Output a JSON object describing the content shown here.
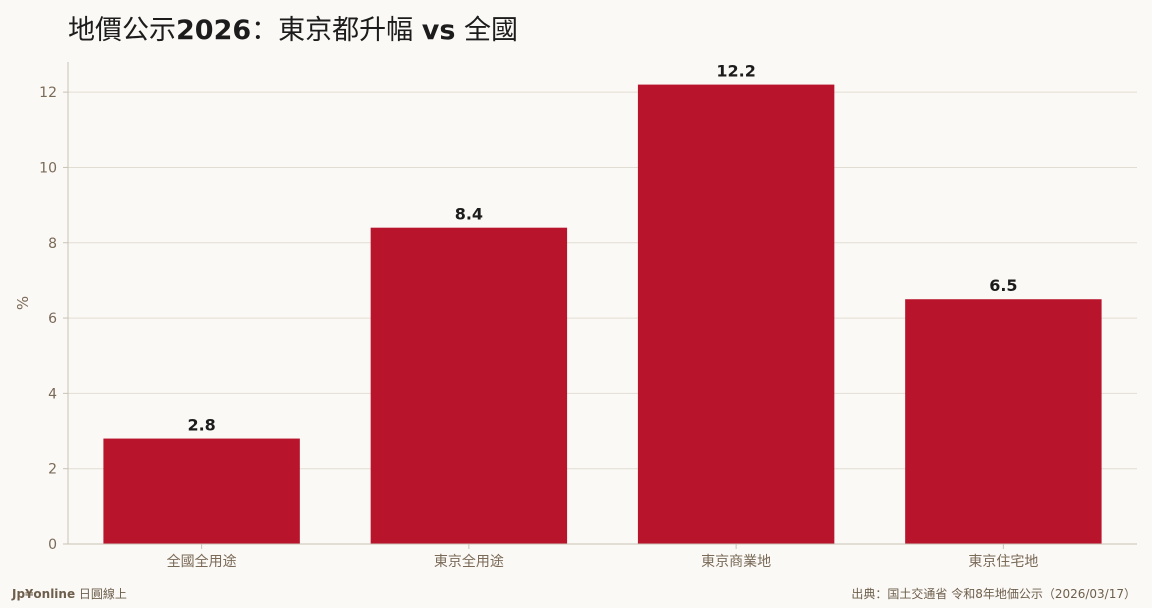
{
  "title": {
    "part1": "地價公示",
    "year": "2026",
    "part2": "：東京都升幅",
    "vs": "vs",
    "part3": "全國"
  },
  "chart_data": {
    "type": "bar",
    "categories": [
      "全國全用途",
      "東京全用途",
      "東京商業地",
      "東京住宅地"
    ],
    "values": [
      2.8,
      8.4,
      12.2,
      6.5
    ],
    "value_labels": [
      "2.8",
      "8.4",
      "12.2",
      "6.5"
    ],
    "xlabel": "",
    "ylabel": "%",
    "ylim": [
      0,
      12.8
    ],
    "yticks": [
      "0",
      "2",
      "4",
      "6",
      "8",
      "10",
      "12"
    ],
    "grid": true,
    "bar_color": "#b8142c",
    "grid_color": "#e2ddd3",
    "axis_color": "#c9c2b6",
    "legend": "none"
  },
  "footer": {
    "brand_strong": "Jp¥online",
    "brand_rest": " 日圓線上",
    "source": "出典：国土交通省 令和8年地価公示（2026/03/17）"
  }
}
